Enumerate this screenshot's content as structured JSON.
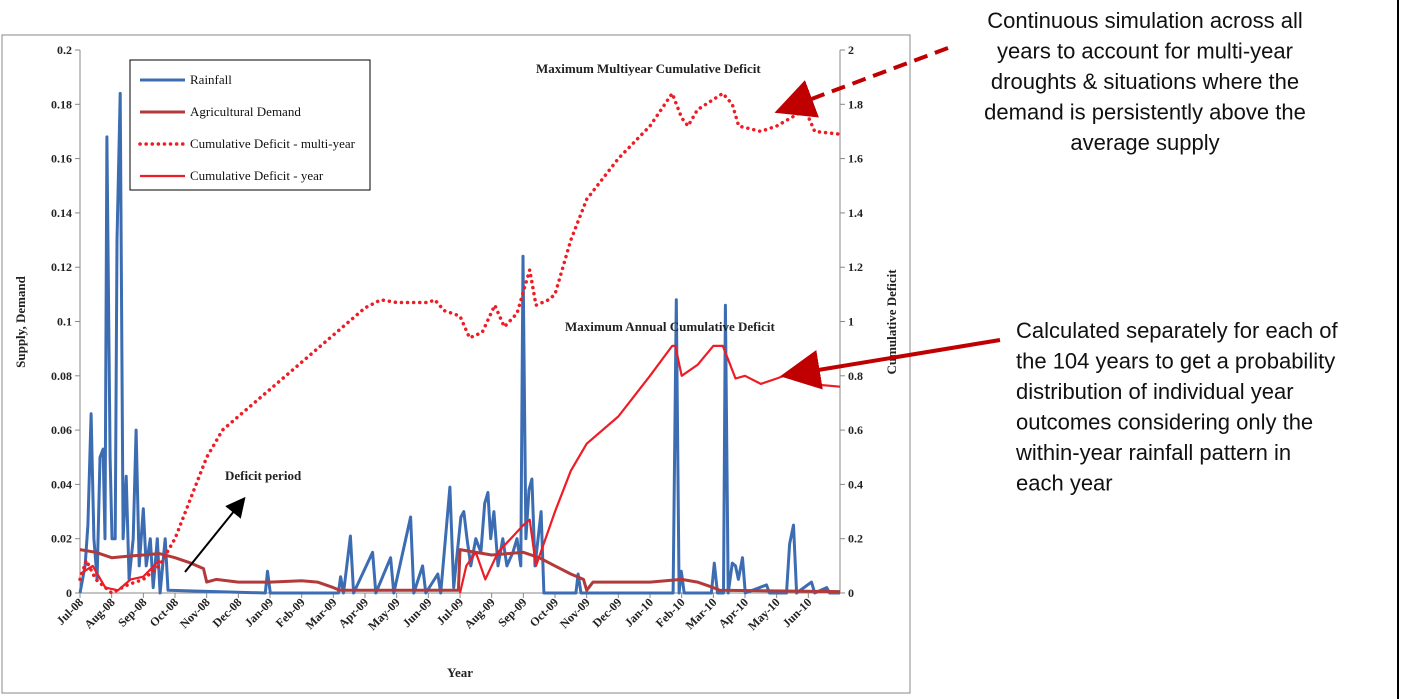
{
  "chart_data": {
    "type": "line",
    "x_label": "Year",
    "y_label": "Supply, Demand",
    "y2_label": "Cumulative Deficit",
    "xlim": [
      0,
      24
    ],
    "xticks": [
      {
        "value": 0,
        "label": "Jul-08"
      },
      {
        "value": 1,
        "label": "Aug-08"
      },
      {
        "value": 2,
        "label": "Sep-08"
      },
      {
        "value": 3,
        "label": "Oct-08"
      },
      {
        "value": 4,
        "label": "Nov-08"
      },
      {
        "value": 5,
        "label": "Dec-08"
      },
      {
        "value": 6,
        "label": "Jan-09"
      },
      {
        "value": 7,
        "label": "Feb-09"
      },
      {
        "value": 8,
        "label": "Mar-09"
      },
      {
        "value": 9,
        "label": "Apr-09"
      },
      {
        "value": 10,
        "label": "May-09"
      },
      {
        "value": 11,
        "label": "Jun-09"
      },
      {
        "value": 12,
        "label": "Jul-09"
      },
      {
        "value": 13,
        "label": "Aug-09"
      },
      {
        "value": 14,
        "label": "Sep-09"
      },
      {
        "value": 15,
        "label": "Oct-09"
      },
      {
        "value": 16,
        "label": "Nov-09"
      },
      {
        "value": 17,
        "label": "Dec-09"
      },
      {
        "value": 18,
        "label": "Jan-10"
      },
      {
        "value": 19,
        "label": "Feb-10"
      },
      {
        "value": 20,
        "label": "Mar-10"
      },
      {
        "value": 21,
        "label": "Apr-10"
      },
      {
        "value": 22,
        "label": "May-10"
      },
      {
        "value": 23,
        "label": "Jun-10"
      }
    ],
    "ylim": [
      0,
      0.2
    ],
    "yticks": [
      0,
      0.02,
      0.04,
      0.06,
      0.08,
      0.1,
      0.12,
      0.14,
      0.16,
      0.18,
      0.2
    ],
    "y2lim": [
      0,
      2
    ],
    "y2ticks": [
      0,
      0.2,
      0.4,
      0.6,
      0.8,
      1,
      1.2,
      1.4,
      1.6,
      1.8,
      2
    ],
    "legend": "upper left",
    "series": [
      {
        "name": "Rainfall",
        "color": "#3c6db2",
        "style": "solid",
        "x": [
          0,
          0.16,
          0.25,
          0.35,
          0.44,
          0.54,
          0.63,
          0.73,
          0.79,
          0.85,
          0.95,
          1.01,
          1.11,
          1.17,
          1.27,
          1.36,
          1.46,
          1.55,
          1.68,
          1.77,
          1.87,
          2.0,
          2.09,
          2.22,
          2.31,
          2.44,
          2.53,
          2.69,
          2.78,
          5.85,
          5.92,
          6.01,
          8.16,
          8.23,
          8.32,
          8.54,
          8.64,
          9.24,
          9.34,
          9.81,
          9.91,
          10.44,
          10.54,
          10.82,
          10.92,
          11.3,
          11.39,
          11.68,
          11.8,
          12.03,
          12.12,
          12.22,
          12.34,
          12.5,
          12.66,
          12.78,
          12.88,
          12.97,
          13.07,
          13.2,
          13.35,
          13.48,
          13.67,
          13.8,
          13.92,
          13.99,
          14.08,
          14.18,
          14.27,
          14.37,
          14.56,
          14.65,
          15.66,
          15.73,
          15.82,
          18.73,
          18.83,
          18.92,
          18.99,
          19.08,
          19.94,
          20.03,
          20.13,
          20.32,
          20.38,
          20.47,
          20.6,
          20.7,
          20.79,
          20.92,
          21.01,
          21.68,
          21.77,
          22.31,
          22.41,
          22.53,
          22.63,
          23.1,
          23.2,
          23.58,
          23.67,
          24
        ],
        "values": [
          0,
          0.01,
          0.025,
          0.066,
          0.02,
          0.005,
          0.05,
          0.053,
          0.02,
          0.168,
          0.05,
          0.02,
          0.02,
          0.13,
          0.184,
          0.02,
          0.043,
          0.005,
          0.02,
          0.06,
          0.01,
          0.031,
          0.01,
          0.02,
          0.002,
          0.02,
          0,
          0.02,
          0.001,
          0,
          0.008,
          0,
          0,
          0.006,
          0,
          0.021,
          0,
          0.015,
          0,
          0.013,
          0,
          0.028,
          0,
          0.01,
          0,
          0.007,
          0,
          0.039,
          0.002,
          0.028,
          0.03,
          0.02,
          0.01,
          0.02,
          0.015,
          0.033,
          0.037,
          0.02,
          0.03,
          0.01,
          0.02,
          0.01,
          0.015,
          0.02,
          0.01,
          0.124,
          0.02,
          0.038,
          0.042,
          0.01,
          0.03,
          0,
          0,
          0.007,
          0,
          0,
          0.108,
          0,
          0.008,
          0,
          0,
          0.011,
          0,
          0,
          0.106,
          0,
          0.011,
          0.01,
          0.005,
          0.013,
          0,
          0.003,
          0,
          0,
          0.018,
          0.025,
          0,
          0.004,
          0,
          0.002,
          0,
          0
        ]
      },
      {
        "name": "Agricultural Demand",
        "color": "#b33a3a",
        "style": "solid",
        "x": [
          0,
          0.5,
          1,
          1.5,
          2,
          2.5,
          3,
          3.5,
          3.9,
          4,
          4.3,
          5,
          6,
          7,
          7.5,
          8,
          8.2,
          11.95,
          12,
          13,
          14,
          14.5,
          15,
          15.5,
          15.9,
          16,
          16.2,
          18,
          19,
          19.5,
          20,
          20.2,
          24
        ],
        "values": [
          0.016,
          0.015,
          0.013,
          0.0135,
          0.014,
          0.0145,
          0.013,
          0.011,
          0.009,
          0.004,
          0.005,
          0.004,
          0.004,
          0.0045,
          0.004,
          0.002,
          0.001,
          0.001,
          0.016,
          0.014,
          0.015,
          0.013,
          0.01,
          0.007,
          0.005,
          0.001,
          0.004,
          0.004,
          0.005,
          0.004,
          0.002,
          0.001,
          0.0005
        ]
      },
      {
        "name": "Cumulative Deficit - multi-year",
        "color": "#ee1c24",
        "style": "dotted",
        "axis": "y2",
        "x": [
          0,
          0.2,
          0.5,
          1,
          1.5,
          2,
          2.5,
          3,
          3.5,
          4,
          4.5,
          5,
          6,
          7,
          8,
          9,
          9.5,
          10,
          11,
          11.2,
          11.5,
          12,
          12.3,
          12.7,
          13.1,
          13.4,
          13.8,
          14.2,
          14.4,
          14.8,
          15,
          15.5,
          16,
          17,
          18,
          18.7,
          19,
          19.2,
          19.5,
          20.3,
          20.6,
          20.8,
          21.5,
          22,
          22.9,
          23.2,
          24
        ],
        "values": [
          0.05,
          0.12,
          0.05,
          0,
          0.03,
          0.05,
          0.1,
          0.2,
          0.35,
          0.5,
          0.6,
          0.65,
          0.75,
          0.85,
          0.95,
          1.05,
          1.08,
          1.07,
          1.07,
          1.08,
          1.04,
          1.02,
          0.94,
          0.96,
          1.06,
          0.98,
          1.03,
          1.19,
          1.06,
          1.08,
          1.1,
          1.3,
          1.45,
          1.6,
          1.72,
          1.84,
          1.75,
          1.72,
          1.78,
          1.84,
          1.8,
          1.72,
          1.7,
          1.72,
          1.78,
          1.7,
          1.69
        ]
      },
      {
        "name": "Cumulative Deficit - year",
        "color": "#ee1c24",
        "style": "solid",
        "axis": "y2",
        "x": [
          0,
          0.4,
          0.8,
          1.2,
          1.6,
          2,
          2.5,
          3,
          11.95,
          12,
          12.2,
          12.5,
          12.8,
          13.2,
          13.6,
          14,
          14.2,
          14.4,
          15,
          15.5,
          16,
          17,
          18,
          18.7,
          18.8,
          19,
          19.5,
          20,
          20.3,
          20.5,
          20.7,
          21,
          21.5,
          22,
          22.7,
          23,
          24
        ],
        "values": [
          0.07,
          0.1,
          0.02,
          0.01,
          0.05,
          0.06,
          0.12,
          null,
          null,
          0,
          0.1,
          0.15,
          0.05,
          0.15,
          0.2,
          0.25,
          0.27,
          0.1,
          0.3,
          0.45,
          0.55,
          0.65,
          0.8,
          0.91,
          0.91,
          0.8,
          0.84,
          0.91,
          0.91,
          0.85,
          0.79,
          0.8,
          0.77,
          0.79,
          0.82,
          0.77,
          0.76
        ]
      }
    ],
    "annotations": [
      "Deficit period",
      "Maximum Multiyear  Cumulative Deficit",
      "Maximum Annual Cumulative Deficit"
    ],
    "notes": [
      [
        "Continuous simulation across all",
        "years to account for multi-year",
        "droughts  &  situations where the",
        "demand is persistently above the",
        "average supply"
      ],
      [
        "Calculated separately for each of",
        "the 104 years to get a probability",
        "distribution of individual year",
        "outcomes considering only the",
        "within-year rainfall pattern in",
        "each year"
      ]
    ]
  }
}
